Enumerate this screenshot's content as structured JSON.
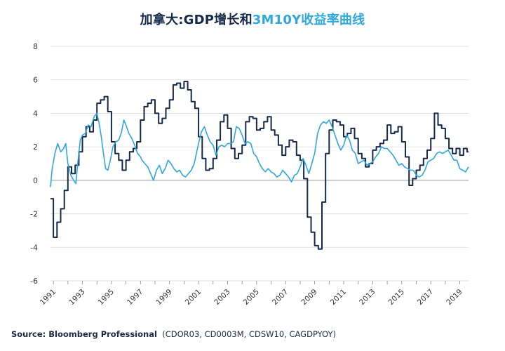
{
  "title": {
    "part1": "加拿大:GDP增长和",
    "part2": "3M10Y收益率曲线"
  },
  "source": {
    "label": "Source: Bloomberg Professional",
    "detail": "(CDOR03, CD0003M, CDSW10, CAGDPYOY)"
  },
  "colors": {
    "gdp": "#16294a",
    "curve": "#2fa8dc",
    "grid": "#d9d9d9",
    "zero": "#9a9a9a"
  },
  "chart_data": {
    "type": "line",
    "ylim": [
      -6,
      8
    ],
    "yticks": [
      "8",
      "6",
      "4",
      "2",
      "0",
      "-2",
      "-4",
      "-6"
    ],
    "xlim": [
      1990.8,
      2019.6
    ],
    "xticks": [
      "1991",
      "1993",
      "1995",
      "1997",
      "1999",
      "2001",
      "2003",
      "2005",
      "2007",
      "2009",
      "2011",
      "2013",
      "2015",
      "2017",
      "2019"
    ],
    "grid": true,
    "series": [
      {
        "kind": "step",
        "x": [
          1990.8,
          1991.0,
          1991.25,
          1991.5,
          1991.75,
          1992.0,
          1992.25,
          1992.5,
          1992.75,
          1993.0,
          1993.25,
          1993.5,
          1993.75,
          1994.0,
          1994.25,
          1994.5,
          1994.75,
          1995.0,
          1995.25,
          1995.5,
          1995.75,
          1996.0,
          1996.25,
          1996.5,
          1996.75,
          1997.0,
          1997.25,
          1997.5,
          1997.75,
          1998.0,
          1998.25,
          1998.5,
          1998.75,
          1999.0,
          1999.25,
          1999.5,
          1999.75,
          2000.0,
          2000.25,
          2000.5,
          2000.75,
          2001.0,
          2001.25,
          2001.5,
          2001.75,
          2002.0,
          2002.25,
          2002.5,
          2002.75,
          2003.0,
          2003.25,
          2003.5,
          2003.75,
          2004.0,
          2004.25,
          2004.5,
          2004.75,
          2005.0,
          2005.25,
          2005.5,
          2005.75,
          2006.0,
          2006.25,
          2006.5,
          2006.75,
          2007.0,
          2007.25,
          2007.5,
          2007.75,
          2008.0,
          2008.25,
          2008.5,
          2008.75,
          2009.0,
          2009.25,
          2009.5,
          2009.75,
          2010.0,
          2010.25,
          2010.5,
          2010.75,
          2011.0,
          2011.25,
          2011.5,
          2011.75,
          2012.0,
          2012.25,
          2012.5,
          2012.75,
          2013.0,
          2013.25,
          2013.5,
          2013.75,
          2014.0,
          2014.25,
          2014.5,
          2014.75,
          2015.0,
          2015.25,
          2015.5,
          2015.75,
          2016.0,
          2016.25,
          2016.5,
          2016.75,
          2017.0,
          2017.25,
          2017.5,
          2017.75,
          2018.0,
          2018.25,
          2018.5,
          2018.75,
          2019.0,
          2019.25,
          2019.5
        ],
        "values": [
          -1.1,
          -3.4,
          -2.5,
          -1.7,
          -0.6,
          0.8,
          0.4,
          0.9,
          1.7,
          2.6,
          3.2,
          2.9,
          3.6,
          4.6,
          4.8,
          5.0,
          4.1,
          2.3,
          1.6,
          1.2,
          0.6,
          1.2,
          1.7,
          1.9,
          2.3,
          3.6,
          4.4,
          4.6,
          4.8,
          4.0,
          3.4,
          3.7,
          4.3,
          4.8,
          5.7,
          5.8,
          5.5,
          5.9,
          5.4,
          4.7,
          4.3,
          2.6,
          1.3,
          0.6,
          0.7,
          1.3,
          2.4,
          3.5,
          3.9,
          3.1,
          1.9,
          1.3,
          1.6,
          2.1,
          3.5,
          3.8,
          3.7,
          3.0,
          3.1,
          3.5,
          3.8,
          3.0,
          2.7,
          2.1,
          1.5,
          2.0,
          2.4,
          2.3,
          1.5,
          1.2,
          0.1,
          -2.2,
          -3.1,
          -3.9,
          -4.1,
          -1.3,
          1.6,
          3.0,
          3.6,
          3.5,
          3.3,
          2.6,
          2.8,
          3.1,
          2.5,
          1.6,
          1.3,
          0.8,
          1.0,
          1.8,
          2.0,
          2.2,
          2.4,
          3.3,
          2.8,
          2.9,
          3.2,
          2.3,
          1.4,
          -0.3,
          0.1,
          0.6,
          0.9,
          1.3,
          1.8,
          2.5,
          4.0,
          3.3,
          3.1,
          2.5,
          1.9,
          1.6,
          1.9,
          1.5,
          1.9,
          1.7
        ]
      },
      {
        "kind": "line",
        "x": [
          1990.8,
          1990.9,
          1991.1,
          1991.3,
          1991.5,
          1991.7,
          1991.85,
          1992.0,
          1992.2,
          1992.4,
          1992.55,
          1992.7,
          1992.85,
          1993.0,
          1993.2,
          1993.4,
          1993.6,
          1993.8,
          1994.0,
          1994.15,
          1994.3,
          1994.45,
          1994.6,
          1994.75,
          1994.9,
          1995.1,
          1995.3,
          1995.5,
          1995.7,
          1995.85,
          1996.0,
          1996.2,
          1996.4,
          1996.6,
          1996.8,
          1997.0,
          1997.1,
          1997.3,
          1997.5,
          1997.7,
          1997.9,
          1998.1,
          1998.3,
          1998.5,
          1998.7,
          1998.9,
          1999.1,
          1999.3,
          1999.5,
          1999.7,
          1999.9,
          2000.1,
          2000.3,
          2000.5,
          2000.7,
          2000.85,
          2001.0,
          2001.2,
          2001.4,
          2001.6,
          2001.8,
          2002.0,
          2002.2,
          2002.4,
          2002.6,
          2002.8,
          2003.0,
          2003.2,
          2003.4,
          2003.6,
          2003.8,
          2004.0,
          2004.2,
          2004.4,
          2004.6,
          2004.8,
          2005.0,
          2005.2,
          2005.4,
          2005.6,
          2005.8,
          2006.0,
          2006.2,
          2006.4,
          2006.6,
          2006.8,
          2007.0,
          2007.2,
          2007.4,
          2007.6,
          2007.8,
          2008.0,
          2008.2,
          2008.4,
          2008.6,
          2008.8,
          2009.0,
          2009.2,
          2009.4,
          2009.6,
          2009.8,
          2010.0,
          2010.2,
          2010.4,
          2010.6,
          2010.8,
          2011.0,
          2011.2,
          2011.4,
          2011.6,
          2011.8,
          2012.0,
          2012.2,
          2012.4,
          2012.6,
          2012.8,
          2013.0,
          2013.2,
          2013.4,
          2013.6,
          2013.8,
          2014.0,
          2014.2,
          2014.4,
          2014.6,
          2014.8,
          2015.0,
          2015.2,
          2015.4,
          2015.6,
          2015.8,
          2016.0,
          2016.2,
          2016.4,
          2016.6,
          2016.8,
          2017.0,
          2017.2,
          2017.4,
          2017.6,
          2017.8,
          2018.0,
          2018.2,
          2018.4,
          2018.6,
          2018.8,
          2019.0,
          2019.2,
          2019.4,
          2019.6
        ],
        "values": [
          -0.4,
          0.6,
          1.6,
          2.2,
          1.7,
          1.9,
          2.2,
          1.0,
          0.3,
          0.0,
          -0.2,
          1.2,
          2.4,
          2.7,
          2.8,
          3.3,
          3.2,
          3.8,
          4.0,
          3.4,
          2.6,
          1.6,
          0.7,
          0.6,
          1.1,
          2.0,
          2.3,
          2.4,
          2.9,
          3.6,
          3.3,
          2.8,
          2.5,
          2.1,
          1.6,
          1.4,
          1.2,
          1.0,
          0.8,
          0.4,
          0.0,
          0.6,
          0.9,
          0.4,
          0.7,
          1.2,
          1.0,
          0.7,
          0.5,
          0.6,
          0.3,
          0.2,
          0.4,
          0.6,
          1.0,
          1.6,
          2.2,
          2.9,
          3.2,
          2.7,
          2.3,
          2.1,
          1.5,
          2.0,
          2.1,
          2.0,
          2.2,
          2.2,
          2.3,
          3.2,
          3.1,
          2.7,
          2.2,
          2.3,
          2.2,
          1.6,
          1.4,
          1.0,
          0.7,
          0.5,
          0.7,
          0.5,
          0.4,
          0.2,
          0.3,
          0.6,
          0.4,
          0.2,
          -0.1,
          0.3,
          0.4,
          0.8,
          1.3,
          0.9,
          0.4,
          1.0,
          1.6,
          2.8,
          3.3,
          3.5,
          3.4,
          3.6,
          3.2,
          2.7,
          2.2,
          1.8,
          2.1,
          2.7,
          2.4,
          1.8,
          1.6,
          1.0,
          1.1,
          1.2,
          0.9,
          1.0,
          1.1,
          1.4,
          1.6,
          2.0,
          1.9,
          1.9,
          1.7,
          1.5,
          1.2,
          0.9,
          1.0,
          0.8,
          0.7,
          0.6,
          0.6,
          0.3,
          0.2,
          0.3,
          0.6,
          1.1,
          1.2,
          1.3,
          1.6,
          1.7,
          1.6,
          1.7,
          1.8,
          1.5,
          1.2,
          1.2,
          0.7,
          0.6,
          0.5,
          0.8
        ]
      }
    ]
  }
}
